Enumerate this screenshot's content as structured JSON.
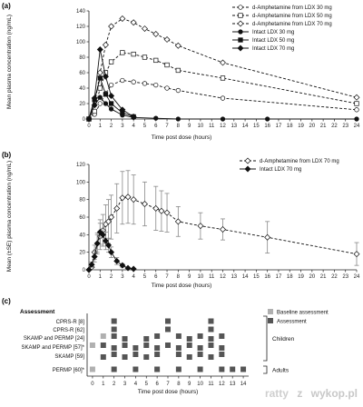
{
  "watermark": {
    "user": "ratty",
    "separator": "z",
    "site": "wykop.pl"
  },
  "colors": {
    "line": "#111111",
    "baseline": "#b0b0b0",
    "assessment": "#555555",
    "errorbar": "#888888"
  },
  "chart_data": [
    {
      "id": "a",
      "panel_label": "(a)",
      "type": "line",
      "xlabel": "Time post dose (hours)",
      "ylabel": "Mean plasma concentration (ng/mL)",
      "xlim": [
        0,
        24
      ],
      "ylim": [
        0,
        140
      ],
      "xticks": [
        0,
        1,
        2,
        3,
        4,
        5,
        6,
        7,
        8,
        9,
        10,
        11,
        12,
        13,
        14,
        15,
        16,
        17,
        18,
        19,
        20,
        21,
        22,
        23,
        24
      ],
      "yticks": [
        0,
        20,
        40,
        60,
        80,
        100,
        120,
        140
      ],
      "legend_position": "top-right",
      "series": [
        {
          "name": "d-Amphetamine from LDX 30 mg",
          "style": "dashed",
          "marker": "circle-open",
          "x": [
            0,
            0.5,
            1,
            1.5,
            2,
            3,
            4,
            5,
            6,
            7,
            8,
            12,
            24
          ],
          "y": [
            0,
            6,
            20,
            33,
            44,
            50,
            48,
            46,
            44,
            40,
            37,
            27,
            12
          ]
        },
        {
          "name": "d-Amphetamine from LDX 50 mg",
          "style": "dashed",
          "marker": "square-open",
          "x": [
            0,
            0.5,
            1,
            1.5,
            2,
            3,
            4,
            5,
            6,
            7,
            8,
            12,
            24
          ],
          "y": [
            0,
            10,
            40,
            60,
            74,
            86,
            84,
            80,
            76,
            70,
            63,
            53,
            20
          ]
        },
        {
          "name": "d-Amphetamine from LDX 70 mg",
          "style": "dashed",
          "marker": "diamond-open",
          "x": [
            0,
            0.5,
            1,
            1.5,
            2,
            3,
            4,
            5,
            6,
            7,
            8,
            12,
            24
          ],
          "y": [
            0,
            18,
            60,
            96,
            120,
            130,
            125,
            117,
            110,
            103,
            95,
            73,
            28
          ]
        },
        {
          "name": "Intact LDX 30 mg",
          "style": "solid",
          "marker": "circle-filled",
          "x": [
            0,
            0.5,
            1,
            1.5,
            2,
            3,
            4,
            6,
            8,
            12,
            16,
            24
          ],
          "y": [
            0,
            18,
            28,
            20,
            13,
            5,
            2,
            1,
            0,
            0,
            0,
            0
          ]
        },
        {
          "name": "Intact LDX 50 mg",
          "style": "solid",
          "marker": "square-filled",
          "x": [
            0,
            0.5,
            1,
            1.5,
            2,
            3,
            4
          ],
          "y": [
            0,
            25,
            53,
            32,
            20,
            8,
            3
          ]
        },
        {
          "name": "Intact LDX 70 mg",
          "style": "solid",
          "marker": "diamond-filled",
          "x": [
            0,
            0.5,
            1,
            1.5,
            2,
            3,
            4
          ],
          "y": [
            0,
            27,
            90,
            55,
            30,
            12,
            3
          ]
        }
      ]
    },
    {
      "id": "b",
      "panel_label": "(b)",
      "type": "line",
      "xlabel": "Time post dose (hours)",
      "ylabel": "Mean (±SE) plasma concentration (ng/mL)",
      "xlim": [
        0,
        24
      ],
      "ylim": [
        0,
        120
      ],
      "xticks": [
        0,
        1,
        2,
        3,
        4,
        5,
        6,
        7,
        8,
        9,
        10,
        11,
        12,
        13,
        14,
        15,
        16,
        17,
        18,
        19,
        20,
        21,
        22,
        23,
        24
      ],
      "yticks": [
        0,
        20,
        40,
        60,
        80,
        100,
        120
      ],
      "legend_position": "top-right",
      "series": [
        {
          "name": "d-Amphetamine from LDX 70 mg",
          "style": "dashed",
          "marker": "diamond-open",
          "x": [
            0,
            0.25,
            0.5,
            0.75,
            1,
            1.25,
            1.5,
            1.75,
            2,
            2.5,
            3,
            3.5,
            4,
            5,
            6,
            6.5,
            7,
            8,
            10,
            12,
            16,
            24
          ],
          "y": [
            0,
            3,
            20,
            30,
            38,
            45,
            52,
            55,
            60,
            70,
            82,
            83,
            80,
            75,
            70,
            67,
            65,
            55,
            50,
            46,
            37,
            18
          ],
          "err": [
            0,
            3,
            8,
            12,
            15,
            18,
            22,
            25,
            25,
            28,
            30,
            30,
            28,
            25,
            25,
            23,
            22,
            17,
            15,
            12,
            18,
            13
          ]
        },
        {
          "name": "Intact LDX 70 mg",
          "style": "solid",
          "marker": "diamond-filled",
          "x": [
            0,
            0.25,
            0.5,
            0.75,
            1,
            1.25,
            1.5,
            1.75,
            2,
            2.5,
            3,
            3.5,
            4
          ],
          "y": [
            0,
            6,
            15,
            30,
            43,
            40,
            33,
            28,
            20,
            10,
            5,
            2,
            1
          ],
          "err": [
            0,
            3,
            6,
            10,
            14,
            13,
            10,
            8,
            6,
            4,
            2,
            1,
            0
          ]
        }
      ]
    },
    {
      "id": "c",
      "panel_label": "(c)",
      "type": "table",
      "header": "Assessment",
      "xlabel": "Time post dose (hours)",
      "xlim": [
        -0.5,
        14.5
      ],
      "xticks": [
        0,
        1,
        2,
        3,
        4,
        5,
        6,
        7,
        8,
        9,
        10,
        11,
        12,
        13,
        14
      ],
      "legend": [
        {
          "name": "Baseline assessment",
          "kind": "baseline"
        },
        {
          "name": "Assessment",
          "kind": "assessment"
        }
      ],
      "groups": [
        {
          "name": "Children",
          "rows": [
            0,
            1,
            2,
            3,
            4
          ]
        },
        {
          "name": "Adults",
          "rows": [
            5
          ]
        }
      ],
      "rows": [
        {
          "label": "CPRS-R [8]",
          "baseline": [],
          "assessments": [
            2,
            7,
            11
          ]
        },
        {
          "label": "CPRS-R [62]",
          "baseline": [],
          "assessments": [
            2,
            7,
            11
          ]
        },
        {
          "label": "SKAMP and PERMP [24]",
          "baseline": [
            1
          ],
          "assessments": [
            2,
            3,
            5,
            6,
            8,
            9,
            10,
            11,
            12
          ]
        },
        {
          "label": "SKAMP and PERMP [57]*",
          "baseline": [
            0
          ],
          "assessments": [
            1,
            2,
            3,
            4,
            5,
            6,
            7,
            8,
            9,
            10,
            11,
            12
          ]
        },
        {
          "label": "SKAMP [59]",
          "baseline": [],
          "assessments": [
            1,
            2,
            3,
            4,
            5,
            6,
            8,
            9,
            10,
            11,
            12
          ]
        },
        {
          "label": "PERMP [60]*",
          "baseline": [
            0
          ],
          "assessments": [
            2,
            4,
            6,
            8,
            10,
            12,
            13,
            14
          ]
        }
      ]
    }
  ]
}
